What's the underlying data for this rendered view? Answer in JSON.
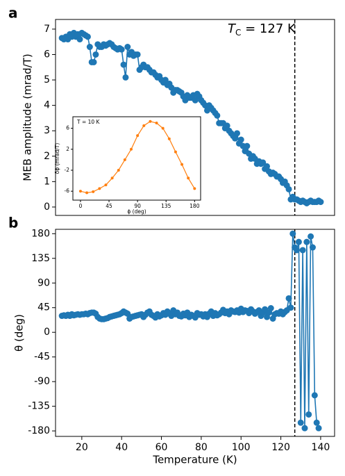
{
  "chart_data": [
    {
      "type": "line",
      "panel_label": "a",
      "ylabel": "MEB amplitude (mrad/T)",
      "annotation": {
        "symbol": "T",
        "subscript": "C",
        "text": " = 127 K"
      },
      "vline": 127,
      "xlim": [
        6.8,
        147
      ],
      "ylim": [
        -0.33,
        7.38
      ],
      "yticks": [
        0,
        1,
        2,
        3,
        4,
        5,
        6,
        7
      ],
      "x": [
        10,
        11,
        12,
        13,
        14,
        15,
        16,
        17,
        18,
        19,
        20,
        21,
        22,
        23,
        24,
        25,
        26,
        27,
        28,
        29,
        30,
        31,
        32,
        33,
        34,
        35,
        36,
        37,
        38,
        39,
        40,
        41,
        42,
        43,
        44,
        45,
        46,
        47,
        48,
        49,
        50,
        51,
        52,
        53,
        54,
        55,
        56,
        57,
        58,
        59,
        60,
        61,
        62,
        63,
        64,
        65,
        66,
        67,
        68,
        69,
        70,
        71,
        72,
        73,
        74,
        75,
        76,
        77,
        78,
        79,
        80,
        81,
        82,
        83,
        84,
        85,
        86,
        87,
        88,
        89,
        90,
        91,
        92,
        93,
        94,
        95,
        96,
        97,
        98,
        99,
        100,
        101,
        102,
        103,
        104,
        105,
        106,
        107,
        108,
        109,
        110,
        111,
        112,
        113,
        114,
        115,
        116,
        117,
        118,
        119,
        120,
        121,
        122,
        123,
        124,
        125,
        126,
        127,
        128,
        129,
        130,
        131,
        132,
        133,
        134,
        135,
        136,
        137,
        138,
        139,
        140
      ],
      "series": [
        {
          "color": "#1f77b4",
          "values": [
            6.65,
            6.6,
            6.7,
            6.6,
            6.8,
            6.7,
            6.85,
            6.7,
            6.8,
            6.6,
            6.85,
            6.8,
            6.75,
            6.7,
            6.3,
            5.7,
            5.7,
            6.0,
            6.4,
            6.3,
            6.3,
            6.4,
            6.35,
            6.4,
            6.45,
            6.4,
            6.3,
            6.25,
            6.2,
            6.25,
            6.2,
            5.6,
            5.1,
            6.3,
            6.0,
            6.1,
            5.95,
            6.0,
            6.0,
            5.4,
            5.5,
            5.6,
            5.5,
            5.5,
            5.4,
            5.3,
            5.3,
            5.2,
            5.1,
            5.15,
            5.0,
            4.9,
            5.0,
            4.8,
            4.85,
            4.7,
            4.5,
            4.6,
            4.6,
            4.55,
            4.5,
            4.35,
            4.2,
            4.4,
            4.3,
            4.3,
            4.4,
            4.2,
            4.45,
            4.35,
            4.2,
            4.1,
            4.0,
            3.8,
            4.0,
            3.9,
            3.8,
            3.7,
            3.6,
            3.3,
            3.3,
            3.3,
            3.1,
            3.2,
            3.0,
            2.9,
            2.8,
            2.7,
            2.9,
            2.5,
            2.65,
            2.4,
            2.2,
            2.4,
            2.1,
            1.9,
            2.0,
            1.9,
            1.7,
            1.8,
            1.7,
            1.75,
            1.5,
            1.6,
            1.4,
            1.3,
            1.35,
            1.3,
            1.2,
            1.2,
            1.1,
            0.95,
            1.0,
            0.85,
            0.7,
            0.3,
            0.4,
            0.3,
            0.3,
            0.25,
            0.2,
            0.25,
            0.2,
            0.15,
            0.2,
            0.25,
            0.2,
            0.2,
            0.2,
            0.25,
            0.2
          ]
        }
      ]
    },
    {
      "type": "line",
      "annotation": "T = 10 K",
      "xlabel": "ϕ (deg)",
      "ylabel": "δϕ (mrad/T)",
      "xlim": [
        -12,
        189.5
      ],
      "ylim": [
        -7.7,
        8.2
      ],
      "xticks": [
        0,
        45,
        90,
        135,
        180
      ],
      "yticks": [
        -6,
        -2,
        2,
        6
      ],
      "x": [
        0,
        10,
        20,
        30,
        40,
        50,
        60,
        70,
        80,
        90,
        100,
        110,
        120,
        130,
        140,
        150,
        160,
        170,
        180
      ],
      "series": [
        {
          "color": "#ff7f0e",
          "values": [
            -6.0,
            -6.3,
            -6.1,
            -5.5,
            -4.8,
            -3.5,
            -2.0,
            0.0,
            2.0,
            4.6,
            6.5,
            7.3,
            7.0,
            6.0,
            4.0,
            1.5,
            -0.9,
            -3.5,
            -5.5
          ]
        }
      ]
    },
    {
      "type": "line",
      "panel_label": "b",
      "xlabel": "Temperature (K)",
      "ylabel": "θ (deg)",
      "vline": 127,
      "xlim": [
        6.8,
        147
      ],
      "ylim": [
        -190,
        188
      ],
      "xticks": [
        20,
        40,
        60,
        80,
        100,
        120,
        140
      ],
      "yticks": [
        180,
        135,
        90,
        45,
        0,
        -45,
        -90,
        -135,
        -180
      ],
      "x": [
        10,
        11,
        12,
        13,
        14,
        15,
        16,
        17,
        18,
        19,
        20,
        21,
        22,
        23,
        24,
        25,
        26,
        27,
        28,
        29,
        30,
        31,
        32,
        33,
        34,
        35,
        36,
        37,
        38,
        39,
        40,
        41,
        42,
        43,
        44,
        45,
        46,
        47,
        48,
        49,
        50,
        51,
        52,
        53,
        54,
        55,
        56,
        57,
        58,
        59,
        60,
        61,
        62,
        63,
        64,
        65,
        66,
        67,
        68,
        69,
        70,
        71,
        72,
        73,
        74,
        75,
        76,
        77,
        78,
        79,
        80,
        81,
        82,
        83,
        84,
        85,
        86,
        87,
        88,
        89,
        90,
        91,
        92,
        93,
        94,
        95,
        96,
        97,
        98,
        99,
        100,
        101,
        102,
        103,
        104,
        105,
        106,
        107,
        108,
        109,
        110,
        111,
        112,
        113,
        114,
        115,
        116,
        117,
        118,
        119,
        120,
        121,
        122,
        123,
        124,
        125,
        126,
        127,
        128,
        129,
        130,
        131,
        132,
        133,
        134,
        135,
        136,
        137,
        138,
        139
      ],
      "series": [
        {
          "color": "#1f77b4",
          "values": [
            30,
            31,
            30,
            32,
            30,
            33,
            31,
            32,
            33,
            32,
            33,
            33,
            34,
            33,
            35,
            36,
            36,
            34,
            28,
            25,
            24,
            24,
            25,
            26,
            28,
            29,
            30,
            31,
            32,
            33,
            35,
            38,
            36,
            34,
            25,
            28,
            29,
            30,
            31,
            32,
            33,
            28,
            32,
            36,
            38,
            32,
            30,
            27,
            33,
            29,
            31,
            35,
            32,
            38,
            34,
            30,
            40,
            33,
            36,
            30,
            29,
            34,
            31,
            36,
            28,
            32,
            30,
            27,
            35,
            32,
            33,
            29,
            33,
            28,
            34,
            38,
            30,
            35,
            31,
            33,
            36,
            41,
            35,
            38,
            33,
            40,
            38,
            37,
            40,
            36,
            43,
            37,
            40,
            39,
            35,
            42,
            38,
            34,
            37,
            40,
            30,
            36,
            42,
            28,
            36,
            44,
            25,
            33,
            35,
            34,
            38,
            33,
            37,
            40,
            62,
            45,
            180,
            155,
            150,
            165,
            -165,
            150,
            -175,
            165,
            -150,
            175,
            155,
            -115,
            -165,
            -175
          ]
        }
      ]
    }
  ]
}
